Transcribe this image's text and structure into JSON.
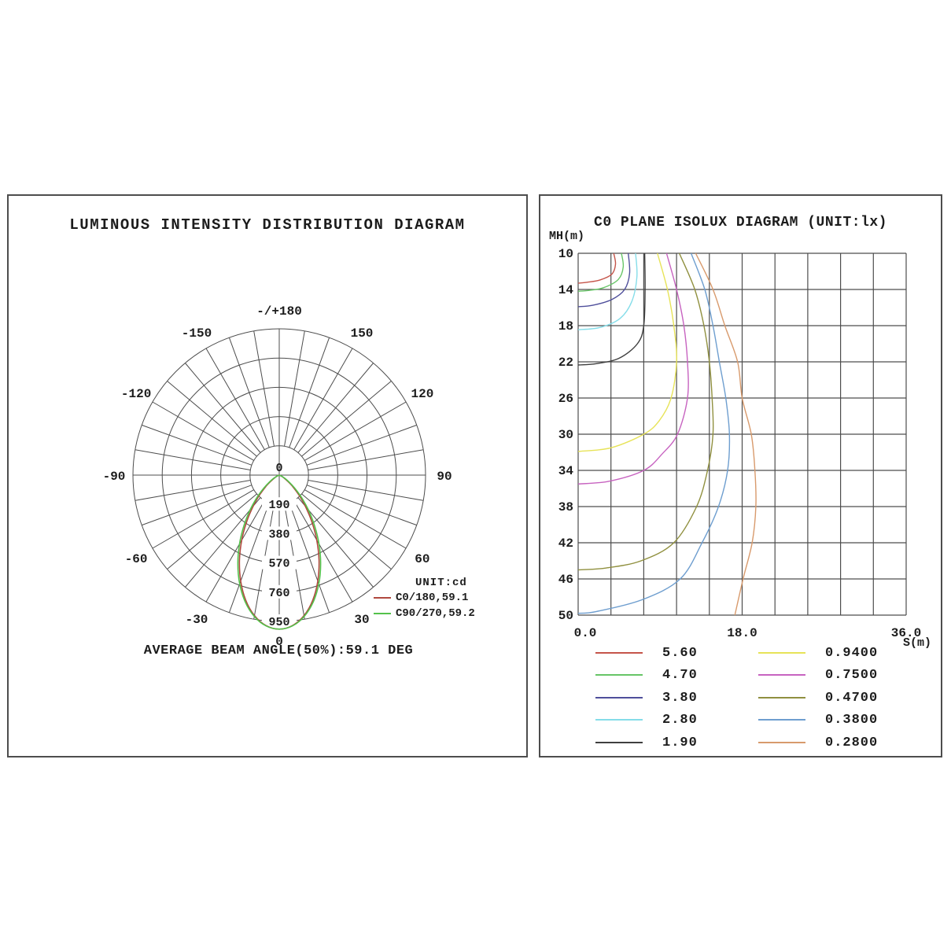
{
  "left_panel": {
    "title": "LUMINOUS INTENSITY DISTRIBUTION DIAGRAM",
    "footer": "AVERAGE BEAM ANGLE(50%):59.1 DEG",
    "legend": {
      "unit_label": "UNIT:cd",
      "items": [
        {
          "label": "C0/180,59.1",
          "color": "#b0493f"
        },
        {
          "label": "C90/270,59.2",
          "color": "#53c24b"
        }
      ]
    }
  },
  "right_panel": {
    "title": "C0 PLANE ISOLUX DIAGRAM (UNIT:lx)",
    "y_axis_name": "MH(m)",
    "x_axis_name": "S(m)",
    "legend": {
      "items": [
        {
          "label": "5.60",
          "color": "#c5554a"
        },
        {
          "label": "4.70",
          "color": "#67c567"
        },
        {
          "label": "3.80",
          "color": "#4f4f9b"
        },
        {
          "label": "2.80",
          "color": "#85dde9"
        },
        {
          "label": "1.90",
          "color": "#3f3f3f"
        },
        {
          "label": "0.9400",
          "color": "#e7e358"
        },
        {
          "label": "0.7500",
          "color": "#c763c0"
        },
        {
          "label": "0.4700",
          "color": "#90903f"
        },
        {
          "label": "0.3800",
          "color": "#6e9ecf"
        },
        {
          "label": "0.2800",
          "color": "#d89a6c"
        }
      ]
    }
  },
  "chart_data": [
    {
      "type": "line",
      "subtype": "polar-luminous-intensity",
      "title": "LUMINOUS INTENSITY DISTRIBUTION DIAGRAM",
      "unit": "cd",
      "footer": "AVERAGE BEAM ANGLE(50%):59.1 DEG",
      "radial_max": 950,
      "radial_ticks": [
        190,
        380,
        570,
        760,
        950
      ],
      "radial_tick_labels": [
        "190",
        "380",
        "570",
        "760",
        "950"
      ],
      "center_label": "0",
      "grid": {
        "spoke_step_deg": 10,
        "rings": 5
      },
      "angle_labels": [
        {
          "deg": 0,
          "label": "0"
        },
        {
          "deg": 30,
          "label": "30"
        },
        {
          "deg": 60,
          "label": "60"
        },
        {
          "deg": 90,
          "label": "90"
        },
        {
          "deg": 120,
          "label": "120"
        },
        {
          "deg": 150,
          "label": "150"
        },
        {
          "deg": 180,
          "label": "-/+180"
        },
        {
          "deg": -30,
          "label": "-30"
        },
        {
          "deg": -60,
          "label": "-60"
        },
        {
          "deg": -90,
          "label": "-90"
        },
        {
          "deg": -120,
          "label": "-120"
        },
        {
          "deg": -150,
          "label": "-150"
        }
      ],
      "series": [
        {
          "name": "C0/180,59.1",
          "color": "#b0493f",
          "points": [
            [
              -75,
              0
            ],
            [
              -70,
              5
            ],
            [
              -65,
              13
            ],
            [
              -60,
              31
            ],
            [
              -55,
              62
            ],
            [
              -50,
              110
            ],
            [
              -45,
              177
            ],
            [
              -40,
              264
            ],
            [
              -35,
              369
            ],
            [
              -30,
              487
            ],
            [
              -25,
              611
            ],
            [
              -20,
              732
            ],
            [
              -15,
              841
            ],
            [
              -10,
              926
            ],
            [
              -5,
              981
            ],
            [
              0,
              1000
            ],
            [
              5,
              981
            ],
            [
              10,
              926
            ],
            [
              15,
              841
            ],
            [
              20,
              732
            ],
            [
              25,
              611
            ],
            [
              30,
              487
            ],
            [
              35,
              369
            ],
            [
              40,
              264
            ],
            [
              45,
              177
            ],
            [
              50,
              110
            ],
            [
              55,
              62
            ],
            [
              60,
              31
            ],
            [
              65,
              13
            ],
            [
              70,
              5
            ],
            [
              75,
              0
            ]
          ]
        },
        {
          "name": "C90/270,59.2",
          "color": "#53c24b",
          "points": [
            [
              -75,
              0
            ],
            [
              -70,
              7
            ],
            [
              -65,
              19
            ],
            [
              -60,
              41
            ],
            [
              -55,
              78
            ],
            [
              -50,
              131
            ],
            [
              -45,
              203
            ],
            [
              -40,
              293
            ],
            [
              -35,
              399
            ],
            [
              -30,
              516
            ],
            [
              -25,
              636
            ],
            [
              -20,
              751
            ],
            [
              -15,
              853
            ],
            [
              -10,
              932
            ],
            [
              -5,
              983
            ],
            [
              0,
              1000
            ],
            [
              5,
              983
            ],
            [
              10,
              932
            ],
            [
              15,
              853
            ],
            [
              20,
              751
            ],
            [
              25,
              636
            ],
            [
              30,
              516
            ],
            [
              35,
              399
            ],
            [
              40,
              293
            ],
            [
              45,
              203
            ],
            [
              50,
              131
            ],
            [
              55,
              78
            ],
            [
              60,
              41
            ],
            [
              65,
              19
            ],
            [
              70,
              7
            ],
            [
              75,
              0
            ]
          ]
        }
      ]
    },
    {
      "type": "line",
      "subtype": "isolux-contours",
      "title": "C0 PLANE ISOLUX DIAGRAM (UNIT:lx)",
      "xlabel": "S(m)",
      "ylabel": "MH(m)",
      "xlim": [
        0,
        36
      ],
      "ylim": [
        10,
        50
      ],
      "x_ticks": [
        0.0,
        18.0,
        36.0
      ],
      "x_tick_labels": [
        "0.0",
        "18.0",
        "36.0"
      ],
      "y_ticks": [
        10,
        14,
        18,
        22,
        26,
        30,
        34,
        38,
        42,
        46,
        50
      ],
      "y_tick_labels": [
        "10",
        "14",
        "18",
        "22",
        "26",
        "30",
        "34",
        "38",
        "42",
        "46",
        "50"
      ],
      "grid": {
        "x_step": 3.6,
        "y_step": 4,
        "on": true
      },
      "series": [
        {
          "name": "5.60",
          "color": "#c5554a",
          "points": [
            [
              3.9,
              10
            ],
            [
              4.1,
              11.2
            ],
            [
              3.7,
              12.3
            ],
            [
              2.4,
              12.95
            ],
            [
              1.0,
              13.2
            ],
            [
              0,
              13.3
            ]
          ]
        },
        {
          "name": "4.70",
          "color": "#67c567",
          "points": [
            [
              4.75,
              10
            ],
            [
              4.95,
              11.5
            ],
            [
              4.4,
              12.9
            ],
            [
              2.8,
              13.8
            ],
            [
              1.2,
              14.1
            ],
            [
              0,
              14.2
            ]
          ]
        },
        {
          "name": "3.80",
          "color": "#4f4f9b",
          "points": [
            [
              5.5,
              10
            ],
            [
              5.65,
              12.2
            ],
            [
              5.1,
              14.0
            ],
            [
              3.7,
              15.1
            ],
            [
              1.6,
              15.75
            ],
            [
              0,
              15.9
            ]
          ]
        },
        {
          "name": "2.80",
          "color": "#85dde9",
          "points": [
            [
              6.3,
              10
            ],
            [
              6.45,
              12.6
            ],
            [
              5.9,
              15.3
            ],
            [
              4.6,
              17.2
            ],
            [
              2.4,
              18.2
            ],
            [
              0,
              18.45
            ]
          ]
        },
        {
          "name": "1.90",
          "color": "#3f3f3f",
          "points": [
            [
              7.3,
              10
            ],
            [
              7.35,
              14
            ],
            [
              7.2,
              18
            ],
            [
              6.5,
              20
            ],
            [
              4.5,
              21.6
            ],
            [
              2.0,
              22.2
            ],
            [
              0,
              22.35
            ]
          ]
        },
        {
          "name": "0.9400",
          "color": "#e7e358",
          "points": [
            [
              8.7,
              10
            ],
            [
              9.8,
              14
            ],
            [
              10.5,
              18
            ],
            [
              10.8,
              22
            ],
            [
              10.2,
              26
            ],
            [
              8.9,
              28.5
            ],
            [
              7.2,
              30
            ],
            [
              3.6,
              31.5
            ],
            [
              0,
              31.9
            ]
          ]
        },
        {
          "name": "0.7500",
          "color": "#c763c0",
          "points": [
            [
              9.7,
              10
            ],
            [
              10.8,
              14
            ],
            [
              11.6,
              18
            ],
            [
              12.0,
              22
            ],
            [
              12.0,
              26
            ],
            [
              10.9,
              30
            ],
            [
              9.2,
              32.2
            ],
            [
              7.2,
              34
            ],
            [
              3.4,
              35.2
            ],
            [
              0,
              35.5
            ]
          ]
        },
        {
          "name": "0.4700",
          "color": "#90903f",
          "points": [
            [
              11.1,
              10
            ],
            [
              12.8,
              14
            ],
            [
              13.8,
              18
            ],
            [
              14.4,
              22
            ],
            [
              14.7,
              26
            ],
            [
              14.8,
              30
            ],
            [
              14.2,
              34
            ],
            [
              13.0,
              38
            ],
            [
              10.5,
              42
            ],
            [
              6.9,
              44.0
            ],
            [
              3.0,
              44.8
            ],
            [
              0,
              45.0
            ]
          ]
        },
        {
          "name": "0.3800",
          "color": "#6e9ecf",
          "points": [
            [
              12.4,
              10
            ],
            [
              13.9,
              14
            ],
            [
              14.8,
              18
            ],
            [
              15.5,
              22
            ],
            [
              16.2,
              26
            ],
            [
              16.6,
              30
            ],
            [
              16.4,
              34
            ],
            [
              15.4,
              38
            ],
            [
              13.6,
              42
            ],
            [
              11.2,
              46
            ],
            [
              7.0,
              48.3
            ],
            [
              2.0,
              49.6
            ],
            [
              0,
              49.8
            ]
          ]
        },
        {
          "name": "0.2800",
          "color": "#d89a6c",
          "points": [
            [
              12.9,
              10
            ],
            [
              14.8,
              14
            ],
            [
              16.1,
              18
            ],
            [
              17.5,
              22
            ],
            [
              18.0,
              26
            ],
            [
              19.0,
              30
            ],
            [
              19.4,
              34
            ],
            [
              19.5,
              38
            ],
            [
              19.1,
              42
            ],
            [
              18.1,
              46
            ],
            [
              17.2,
              50
            ]
          ]
        }
      ]
    }
  ]
}
